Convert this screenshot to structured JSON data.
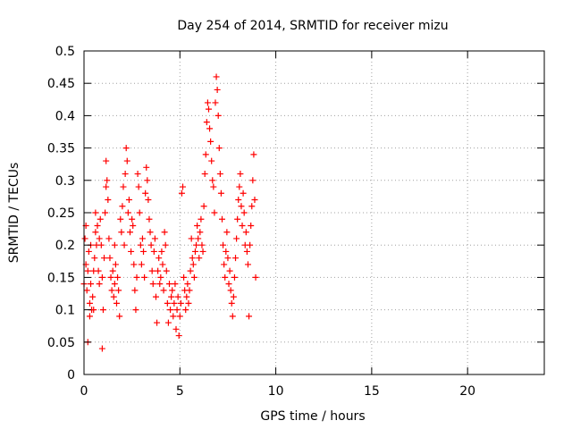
{
  "chart_data": {
    "type": "scatter",
    "title": "Day 254 of 2014, SRMTID for receiver mizu",
    "xlabel": "GPS time / hours",
    "ylabel": "SRMTID / TECUs",
    "xlim": [
      0,
      24
    ],
    "ylim": [
      0,
      0.5
    ],
    "grid": true,
    "marker": "+",
    "marker_color": "#ff0000",
    "x_ticks": [
      0,
      5,
      10,
      15,
      20
    ],
    "x_tick_labels": [
      "0",
      "5",
      "10",
      "15",
      "20"
    ],
    "y_ticks": [
      0,
      0.05,
      0.1,
      0.15,
      0.2,
      0.25,
      0.3,
      0.35,
      0.4,
      0.45,
      0.5
    ],
    "y_tick_labels": [
      "0",
      "0.05",
      "0.1",
      "0.15",
      "0.2",
      "0.25",
      "0.3",
      "0.35",
      "0.4",
      "0.45",
      "0.5"
    ],
    "series": [
      {
        "name": "SRMTID",
        "points": [
          [
            0.0,
            0.14
          ],
          [
            0.05,
            0.21
          ],
          [
            0.1,
            0.23
          ],
          [
            0.1,
            0.17
          ],
          [
            0.15,
            0.13
          ],
          [
            0.2,
            0.05
          ],
          [
            0.2,
            0.16
          ],
          [
            0.25,
            0.19
          ],
          [
            0.3,
            0.09
          ],
          [
            0.3,
            0.11
          ],
          [
            0.35,
            0.14
          ],
          [
            0.35,
            0.2
          ],
          [
            0.4,
            0.1
          ],
          [
            0.45,
            0.12
          ],
          [
            0.5,
            0.1
          ],
          [
            0.5,
            0.16
          ],
          [
            0.55,
            0.18
          ],
          [
            0.6,
            0.22
          ],
          [
            0.6,
            0.25
          ],
          [
            0.65,
            0.2
          ],
          [
            0.7,
            0.23
          ],
          [
            0.75,
            0.16
          ],
          [
            0.8,
            0.14
          ],
          [
            0.8,
            0.21
          ],
          [
            0.85,
            0.24
          ],
          [
            0.9,
            0.2
          ],
          [
            0.95,
            0.04
          ],
          [
            0.95,
            0.15
          ],
          [
            1.0,
            0.1
          ],
          [
            1.05,
            0.18
          ],
          [
            1.1,
            0.25
          ],
          [
            1.15,
            0.33
          ],
          [
            1.15,
            0.29
          ],
          [
            1.2,
            0.3
          ],
          [
            1.25,
            0.27
          ],
          [
            1.3,
            0.21
          ],
          [
            1.35,
            0.18
          ],
          [
            1.4,
            0.15
          ],
          [
            1.45,
            0.13
          ],
          [
            1.5,
            0.16
          ],
          [
            1.55,
            0.12
          ],
          [
            1.6,
            0.14
          ],
          [
            1.6,
            0.2
          ],
          [
            1.65,
            0.17
          ],
          [
            1.7,
            0.11
          ],
          [
            1.75,
            0.15
          ],
          [
            1.8,
            0.13
          ],
          [
            1.85,
            0.09
          ],
          [
            1.9,
            0.24
          ],
          [
            1.95,
            0.22
          ],
          [
            2.0,
            0.26
          ],
          [
            2.05,
            0.29
          ],
          [
            2.1,
            0.2
          ],
          [
            2.15,
            0.31
          ],
          [
            2.2,
            0.35
          ],
          [
            2.25,
            0.33
          ],
          [
            2.3,
            0.25
          ],
          [
            2.35,
            0.27
          ],
          [
            2.4,
            0.22
          ],
          [
            2.45,
            0.19
          ],
          [
            2.5,
            0.24
          ],
          [
            2.55,
            0.23
          ],
          [
            2.6,
            0.17
          ],
          [
            2.65,
            0.13
          ],
          [
            2.7,
            0.1
          ],
          [
            2.75,
            0.15
          ],
          [
            2.8,
            0.31
          ],
          [
            2.85,
            0.29
          ],
          [
            2.9,
            0.25
          ],
          [
            2.95,
            0.2
          ],
          [
            3.0,
            0.17
          ],
          [
            3.05,
            0.21
          ],
          [
            3.1,
            0.19
          ],
          [
            3.15,
            0.15
          ],
          [
            3.2,
            0.28
          ],
          [
            3.25,
            0.32
          ],
          [
            3.3,
            0.3
          ],
          [
            3.35,
            0.27
          ],
          [
            3.4,
            0.24
          ],
          [
            3.45,
            0.22
          ],
          [
            3.5,
            0.2
          ],
          [
            3.55,
            0.16
          ],
          [
            3.6,
            0.14
          ],
          [
            3.65,
            0.19
          ],
          [
            3.7,
            0.21
          ],
          [
            3.75,
            0.12
          ],
          [
            3.8,
            0.08
          ],
          [
            3.85,
            0.16
          ],
          [
            3.9,
            0.18
          ],
          [
            3.95,
            0.14
          ],
          [
            4.0,
            0.15
          ],
          [
            4.05,
            0.19
          ],
          [
            4.1,
            0.17
          ],
          [
            4.15,
            0.13
          ],
          [
            4.2,
            0.22
          ],
          [
            4.25,
            0.2
          ],
          [
            4.3,
            0.16
          ],
          [
            4.35,
            0.11
          ],
          [
            4.4,
            0.08
          ],
          [
            4.45,
            0.14
          ],
          [
            4.5,
            0.1
          ],
          [
            4.55,
            0.12
          ],
          [
            4.6,
            0.13
          ],
          [
            4.65,
            0.09
          ],
          [
            4.7,
            0.11
          ],
          [
            4.75,
            0.14
          ],
          [
            4.8,
            0.07
          ],
          [
            4.85,
            0.1
          ],
          [
            4.9,
            0.12
          ],
          [
            4.95,
            0.06
          ],
          [
            5.0,
            0.09
          ],
          [
            5.05,
            0.11
          ],
          [
            5.1,
            0.28
          ],
          [
            5.15,
            0.29
          ],
          [
            5.2,
            0.15
          ],
          [
            5.25,
            0.13
          ],
          [
            5.3,
            0.1
          ],
          [
            5.35,
            0.12
          ],
          [
            5.4,
            0.14
          ],
          [
            5.45,
            0.11
          ],
          [
            5.5,
            0.13
          ],
          [
            5.55,
            0.16
          ],
          [
            5.6,
            0.21
          ],
          [
            5.65,
            0.18
          ],
          [
            5.7,
            0.17
          ],
          [
            5.75,
            0.15
          ],
          [
            5.8,
            0.19
          ],
          [
            5.85,
            0.2
          ],
          [
            5.9,
            0.23
          ],
          [
            5.95,
            0.21
          ],
          [
            6.0,
            0.18
          ],
          [
            6.05,
            0.22
          ],
          [
            6.1,
            0.24
          ],
          [
            6.15,
            0.2
          ],
          [
            6.2,
            0.19
          ],
          [
            6.25,
            0.26
          ],
          [
            6.3,
            0.31
          ],
          [
            6.35,
            0.34
          ],
          [
            6.4,
            0.39
          ],
          [
            6.45,
            0.42
          ],
          [
            6.5,
            0.41
          ],
          [
            6.55,
            0.38
          ],
          [
            6.6,
            0.36
          ],
          [
            6.65,
            0.33
          ],
          [
            6.7,
            0.3
          ],
          [
            6.75,
            0.29
          ],
          [
            6.8,
            0.25
          ],
          [
            6.85,
            0.42
          ],
          [
            6.9,
            0.46
          ],
          [
            6.95,
            0.44
          ],
          [
            7.0,
            0.4
          ],
          [
            7.05,
            0.35
          ],
          [
            7.1,
            0.31
          ],
          [
            7.15,
            0.28
          ],
          [
            7.2,
            0.24
          ],
          [
            7.25,
            0.2
          ],
          [
            7.3,
            0.17
          ],
          [
            7.35,
            0.15
          ],
          [
            7.4,
            0.19
          ],
          [
            7.45,
            0.22
          ],
          [
            7.5,
            0.18
          ],
          [
            7.55,
            0.14
          ],
          [
            7.6,
            0.16
          ],
          [
            7.65,
            0.13
          ],
          [
            7.7,
            0.11
          ],
          [
            7.75,
            0.09
          ],
          [
            7.8,
            0.12
          ],
          [
            7.85,
            0.15
          ],
          [
            7.9,
            0.18
          ],
          [
            7.95,
            0.21
          ],
          [
            8.0,
            0.24
          ],
          [
            8.05,
            0.27
          ],
          [
            8.1,
            0.29
          ],
          [
            8.15,
            0.31
          ],
          [
            8.2,
            0.26
          ],
          [
            8.25,
            0.23
          ],
          [
            8.3,
            0.28
          ],
          [
            8.35,
            0.25
          ],
          [
            8.4,
            0.2
          ],
          [
            8.45,
            0.22
          ],
          [
            8.5,
            0.19
          ],
          [
            8.55,
            0.17
          ],
          [
            8.6,
            0.09
          ],
          [
            8.65,
            0.2
          ],
          [
            8.7,
            0.23
          ],
          [
            8.75,
            0.26
          ],
          [
            8.8,
            0.3
          ],
          [
            8.85,
            0.34
          ],
          [
            8.9,
            0.27
          ],
          [
            8.95,
            0.15
          ]
        ]
      }
    ]
  }
}
